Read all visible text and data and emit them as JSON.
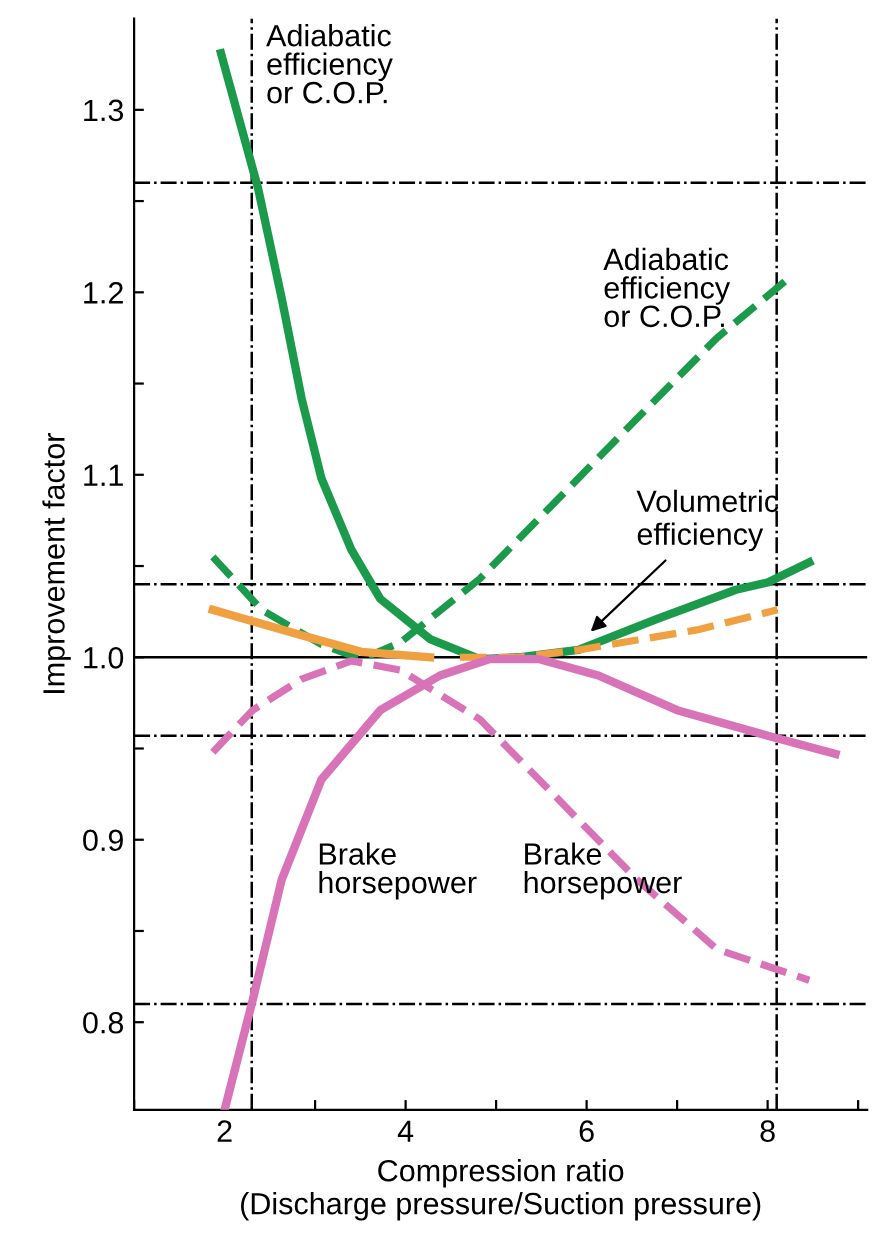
{
  "chart_data": {
    "type": "line",
    "xlabel": "Compression ratio\n(Discharge pressure/Suction pressure)",
    "ylabel": "Improvement factor",
    "xlim": [
      1.0,
      9.1
    ],
    "ylim": [
      0.752,
      1.35
    ],
    "xticks": [
      {
        "value": 1,
        "label": null
      },
      2,
      {
        "value": 3,
        "label": null
      },
      4,
      {
        "value": 5,
        "label": null
      },
      6,
      {
        "value": 7,
        "label": null
      },
      8,
      {
        "value": 9,
        "label": null
      }
    ],
    "yticks": [
      0.8,
      {
        "value": 0.85,
        "label": null
      },
      0.9,
      {
        "value": 0.95,
        "label": null
      },
      "1.0",
      {
        "value": 1.05,
        "label": null
      },
      1.1,
      {
        "value": 1.15,
        "label": null
      },
      1.2,
      {
        "value": 1.25,
        "label": null
      },
      1.3
    ],
    "grid": false,
    "marker": "none",
    "series": [
      {
        "name": "Adiabatic\nefficiency\nor C.O.P.",
        "color": "#1a9a4a",
        "line_style": "solid",
        "x": [
          1.96,
          2.37,
          2.63,
          2.85,
          3.07,
          3.4,
          3.72,
          4.27,
          4.82,
          5.25,
          5.91,
          6.78,
          7.65,
          8.0,
          8.46
        ],
        "values": [
          1.331,
          1.257,
          1.197,
          1.142,
          1.098,
          1.059,
          1.032,
          1.01,
          0.999,
          1.0,
          1.004,
          1.021,
          1.037,
          1.041,
          1.052
        ]
      },
      {
        "name": "Adiabatic\nefficiency\nor C.O.P.",
        "color": "#1a9a4a",
        "line_style": "dashed",
        "x": [
          1.87,
          2.41,
          3.07,
          3.51,
          3.94,
          4.82,
          5.69,
          6.56,
          7.44,
          8.24
        ],
        "values": [
          1.055,
          1.026,
          1.007,
          0.999,
          1.008,
          1.043,
          1.087,
          1.131,
          1.175,
          1.208
        ]
      },
      {
        "color": "#f0a040",
        "line_style": "solid",
        "x": [
          1.87,
          2.85,
          3.51,
          4.27
        ],
        "values": [
          1.026,
          1.012,
          1.003,
          1.0
        ]
      },
      {
        "color": "#f0a040",
        "line_style": "dashed",
        "x": [
          4.6,
          5.25,
          5.91,
          7.22,
          8.11
        ],
        "values": [
          1.0,
          1.0,
          1.004,
          1.015,
          1.026
        ]
      },
      {
        "name": "Brake\nhorsepower",
        "color": "#d873b8",
        "line_style": "solid",
        "x": [
          2.0,
          2.31,
          2.63,
          3.07,
          3.72,
          4.38,
          4.93,
          5.47,
          6.13,
          7.0,
          8.0,
          8.75
        ],
        "values": [
          0.752,
          0.812,
          0.878,
          0.933,
          0.971,
          0.99,
          0.999,
          0.999,
          0.99,
          0.971,
          0.957,
          0.947
        ]
      },
      {
        "name": "Brake\nhorsepower",
        "color": "#d873b8",
        "line_style": "dashed",
        "x": [
          1.87,
          2.31,
          2.85,
          3.4,
          3.94,
          4.82,
          5.69,
          6.56,
          7.44,
          8.46
        ],
        "values": [
          0.948,
          0.971,
          0.988,
          0.998,
          0.993,
          0.966,
          0.922,
          0.878,
          0.84,
          0.823
        ]
      }
    ],
    "ref_lines": [
      {
        "axis": "y",
        "value": 1.0,
        "color": "#000000",
        "line_style": "solid"
      },
      {
        "axis": "x",
        "value": 2.3,
        "color": "#000000",
        "line_style": "dashdot"
      },
      {
        "axis": "x",
        "value": 8.1,
        "color": "#000000",
        "line_style": "dashdot"
      },
      {
        "axis": "y",
        "value": 1.26,
        "color": "#000000",
        "line_style": "dashdot"
      },
      {
        "axis": "y",
        "value": 1.04,
        "color": "#000000",
        "line_style": "dashdot"
      },
      {
        "axis": "y",
        "value": 0.957,
        "color": "#000000",
        "line_style": "dashdot"
      },
      {
        "axis": "y",
        "value": 0.81,
        "color": "#000000",
        "line_style": "dashdot"
      }
    ],
    "annotations": [
      {
        "text": "Volumetric\nefficiency",
        "x": 6.0,
        "y": 1.012
      }
    ]
  }
}
